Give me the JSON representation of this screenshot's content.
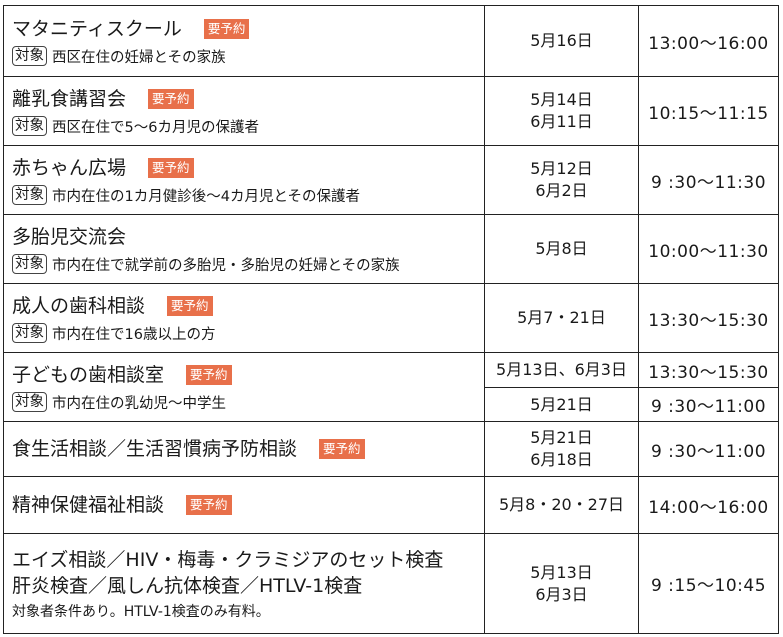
{
  "badge_label": "要予約",
  "target_tag": "対象",
  "rows": [
    {
      "title": "マタニティスクール",
      "reservation": true,
      "target": "西区在住の妊婦とその家族",
      "dates": [
        "5月16日"
      ],
      "time": "13:00〜16:00"
    },
    {
      "title": "離乳食講習会",
      "reservation": true,
      "target": "西区在住で5〜6カ月児の保護者",
      "dates": [
        "5月14日",
        "6月11日"
      ],
      "time": "10:15〜11:15"
    },
    {
      "title": "赤ちゃん広場",
      "reservation": true,
      "target": "市内在住の1カ月健診後〜4カ月児とその保護者",
      "dates": [
        "5月12日",
        "6月2日"
      ],
      "time": "9 :30〜11:30"
    },
    {
      "title": "多胎児交流会",
      "reservation": false,
      "target": "市内在住で就学前の多胎児・多胎児の妊婦とその家族",
      "dates": [
        "5月8日"
      ],
      "time": "10:00〜11:30"
    },
    {
      "title": "成人の歯科相談",
      "reservation": true,
      "target": "市内在住で16歳以上の方",
      "dates": [
        "5月7・21日"
      ],
      "time": "13:30〜15:30"
    },
    {
      "title": "子どもの歯相談室",
      "reservation": true,
      "target": "市内在住の乳幼児〜中学生",
      "sessions": [
        {
          "date": "5月13日、6月3日",
          "time": "13:30〜15:30"
        },
        {
          "date": "5月21日",
          "time": "9 :30〜11:00"
        }
      ]
    },
    {
      "title": "食生活相談／生活習慣病予防相談",
      "reservation": true,
      "dates": [
        "5月21日",
        "6月18日"
      ],
      "time": "9 :30〜11:00"
    },
    {
      "title": "精神保健福祉相談",
      "reservation": true,
      "dates": [
        "5月8・20・27日"
      ],
      "time": "14:00〜16:00"
    },
    {
      "title_lines": [
        "エイズ相談／HIV・梅毒・クラミジアのセット検査",
        "肝炎検査／風しん抗体検査／HTLV-1検査"
      ],
      "note": "対象者条件あり。HTLV-1検査のみ有料。",
      "dates": [
        "5月13日",
        "6月3日"
      ],
      "time": "9 :15〜10:45"
    }
  ]
}
